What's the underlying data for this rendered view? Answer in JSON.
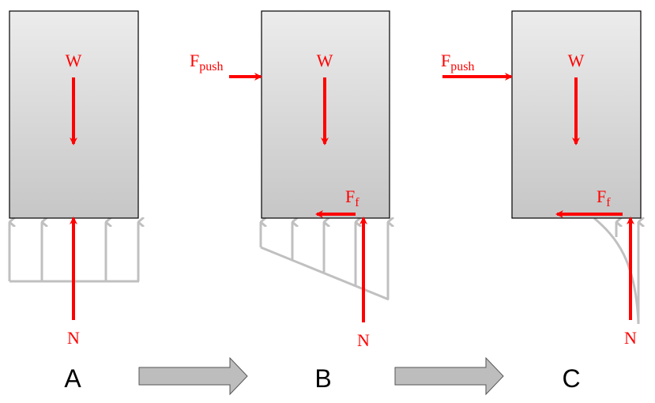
{
  "colors": {
    "force": "#ff0000",
    "distribution": "#c0c0c0",
    "block_top": "#eeeeee",
    "block_bottom": "#c8c8c8",
    "progress_arrow": "#bdbdbd"
  },
  "panels": [
    {
      "label": "A",
      "weight": "W",
      "normal": "N"
    },
    {
      "label": "B",
      "weight": "W",
      "normal": "N",
      "push": {
        "main": "F",
        "sub": "push"
      },
      "friction": {
        "main": "F",
        "sub": "f"
      }
    },
    {
      "label": "C",
      "weight": "W",
      "normal": "N",
      "push": {
        "main": "F",
        "sub": "push"
      },
      "friction": {
        "main": "F",
        "sub": "f"
      }
    }
  ]
}
